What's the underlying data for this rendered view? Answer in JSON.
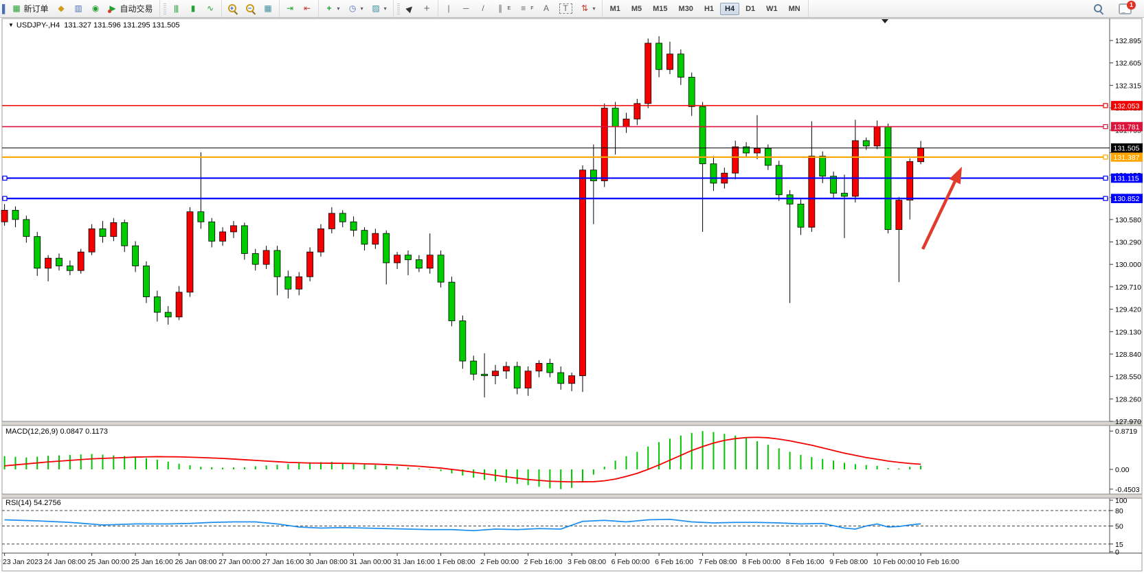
{
  "toolbar": {
    "new_order_label": "新订单",
    "auto_trading_label": "自动交易",
    "timeframes": [
      "M1",
      "M5",
      "M15",
      "M30",
      "H1",
      "H4",
      "D1",
      "W1",
      "MN"
    ],
    "active_timeframe": "H4",
    "notification_count": "1"
  },
  "icons": {
    "left_edge": "▌",
    "new_order": "▦",
    "history": "◆",
    "terminal": "▥",
    "community": "◉",
    "autotrade_play": "▶",
    "chart_bars": "|||",
    "chart_candles": "▮",
    "chart_line": "∿",
    "tile_windows": "▦",
    "shift_end": "⇥",
    "auto_scroll": "⇤",
    "add_indicator": "+",
    "periods": "◷",
    "template": "▨",
    "cursor": "▶",
    "crosshair": "+",
    "vline": "|",
    "hline": "─",
    "trendline": "/",
    "channel": "∥",
    "channel_sub": "E",
    "fibo": "≡",
    "fibo_sub": "F",
    "text_tool": "A",
    "label_tool": "T",
    "shapes": "⇅",
    "caret": "▾",
    "collapse_tri": "▼"
  },
  "chart": {
    "symbol": "USDJPY-,H4",
    "ohlc_line": "131.327 131.596 131.295 131.505"
  },
  "macd_panel": {
    "label": "MACD(12,26,9)",
    "values": "0.0847 0.1173",
    "axis_labels": [
      "0.8719",
      "0.00",
      "-0.4503"
    ]
  },
  "rsi_panel": {
    "label": "RSI(14)",
    "value": "54.2756",
    "axis_labels": [
      "100",
      "80",
      "50",
      "15",
      "0"
    ],
    "levels": [
      80,
      50,
      15
    ]
  },
  "chart_data": {
    "type": "candlestick",
    "title": "USDJPY- H4",
    "bull_color": "#f40000",
    "bear_color": "#00cc00",
    "wick_color": "#000000",
    "ylim": [
      127.97,
      133.17
    ],
    "price_ticks": [
      "132.895",
      "132.605",
      "132.315",
      "132.025",
      "131.735",
      "131.445",
      "131.155",
      "130.865",
      "130.580",
      "130.290",
      "130.000",
      "129.710",
      "129.420",
      "129.130",
      "128.840",
      "128.550",
      "128.260",
      "127.970"
    ],
    "hlines": [
      {
        "price": 132.053,
        "label": "132.053",
        "color": "#f40000",
        "width": 1.6,
        "left_handle": false
      },
      {
        "price": 131.781,
        "label": "131.781",
        "color": "#dc143c",
        "width": 1.6,
        "left_handle": false
      },
      {
        "price": 131.387,
        "label": "131.387",
        "color": "#ffa500",
        "width": 2.2,
        "left_handle": false
      },
      {
        "price": 131.115,
        "label": "131.115",
        "color": "#0000ff",
        "width": 2.2,
        "left_handle": true
      },
      {
        "price": 130.852,
        "label": "130.852",
        "color": "#0000ff",
        "width": 2.2,
        "left_handle": true
      }
    ],
    "bid_line": {
      "price": 131.505,
      "label": "131.505",
      "color": "#000000"
    },
    "x_labels": [
      "23 Jan 2023",
      "24 Jan 08:00",
      "25 Jan 00:00",
      "25 Jan 16:00",
      "26 Jan 08:00",
      "27 Jan 00:00",
      "27 Jan 16:00",
      "30 Jan 08:00",
      "31 Jan 00:00",
      "31 Jan 16:00",
      "1 Feb 08:00",
      "2 Feb 00:00",
      "2 Feb 16:00",
      "3 Feb 08:00",
      "6 Feb 00:00",
      "6 Feb 16:00",
      "7 Feb 08:00",
      "8 Feb 00:00",
      "8 Feb 16:00",
      "9 Feb 08:00",
      "10 Feb 00:00",
      "10 Feb 16:00"
    ],
    "candles_per_xtick": 4,
    "candles": [
      [
        130.55,
        130.78,
        130.5,
        130.7
      ],
      [
        130.7,
        130.75,
        130.48,
        130.58
      ],
      [
        130.58,
        130.63,
        130.28,
        130.36
      ],
      [
        130.36,
        130.42,
        129.85,
        129.95
      ],
      [
        129.95,
        130.12,
        129.78,
        130.08
      ],
      [
        130.08,
        130.14,
        129.92,
        129.98
      ],
      [
        129.98,
        130.05,
        129.86,
        129.92
      ],
      [
        129.92,
        130.2,
        129.88,
        130.16
      ],
      [
        130.16,
        130.52,
        130.12,
        130.46
      ],
      [
        130.46,
        130.56,
        130.28,
        130.36
      ],
      [
        130.36,
        130.6,
        130.3,
        130.54
      ],
      [
        130.54,
        130.58,
        130.16,
        130.24
      ],
      [
        130.24,
        130.3,
        129.9,
        129.98
      ],
      [
        129.98,
        130.04,
        129.5,
        129.58
      ],
      [
        129.58,
        129.66,
        129.26,
        129.38
      ],
      [
        129.38,
        129.46,
        129.22,
        129.32
      ],
      [
        129.32,
        129.72,
        129.28,
        129.64
      ],
      [
        129.64,
        130.74,
        129.58,
        130.68
      ],
      [
        130.68,
        131.45,
        130.46,
        130.55
      ],
      [
        130.55,
        130.6,
        130.22,
        130.3
      ],
      [
        130.3,
        130.48,
        130.24,
        130.42
      ],
      [
        130.42,
        130.56,
        130.34,
        130.5
      ],
      [
        130.5,
        130.54,
        130.06,
        130.14
      ],
      [
        130.14,
        130.2,
        129.92,
        130.0
      ],
      [
        130.0,
        130.24,
        129.94,
        130.18
      ],
      [
        130.18,
        130.24,
        129.6,
        129.84
      ],
      [
        129.84,
        129.92,
        129.56,
        129.68
      ],
      [
        129.68,
        129.9,
        129.6,
        129.84
      ],
      [
        129.84,
        130.22,
        129.78,
        130.16
      ],
      [
        130.16,
        130.52,
        130.1,
        130.46
      ],
      [
        130.46,
        130.74,
        130.4,
        130.66
      ],
      [
        130.66,
        130.7,
        130.48,
        130.55
      ],
      [
        130.55,
        130.62,
        130.36,
        130.44
      ],
      [
        130.44,
        130.48,
        130.18,
        130.26
      ],
      [
        130.26,
        130.46,
        130.2,
        130.4
      ],
      [
        130.4,
        130.44,
        129.74,
        130.02
      ],
      [
        130.02,
        130.16,
        129.94,
        130.12
      ],
      [
        130.12,
        130.18,
        129.86,
        130.06
      ],
      [
        130.06,
        130.12,
        129.9,
        129.95
      ],
      [
        129.95,
        130.4,
        129.88,
        130.12
      ],
      [
        130.12,
        130.18,
        129.7,
        129.77
      ],
      [
        129.77,
        129.84,
        129.2,
        129.27
      ],
      [
        129.27,
        129.34,
        128.65,
        128.75
      ],
      [
        128.75,
        128.82,
        128.5,
        128.58
      ],
      [
        128.58,
        128.85,
        128.28,
        128.56
      ],
      [
        128.56,
        128.7,
        128.45,
        128.62
      ],
      [
        128.62,
        128.74,
        128.52,
        128.68
      ],
      [
        128.68,
        128.74,
        128.32,
        128.4
      ],
      [
        128.4,
        128.68,
        128.3,
        128.62
      ],
      [
        128.62,
        128.76,
        128.54,
        128.72
      ],
      [
        128.72,
        128.78,
        128.54,
        128.6
      ],
      [
        128.6,
        128.68,
        128.38,
        128.46
      ],
      [
        128.46,
        128.6,
        128.36,
        128.56
      ],
      [
        128.56,
        131.28,
        128.35,
        131.22
      ],
      [
        131.22,
        131.55,
        130.52,
        131.08
      ],
      [
        131.08,
        132.08,
        131.0,
        132.02
      ],
      [
        132.02,
        132.1,
        131.42,
        131.78
      ],
      [
        131.78,
        131.96,
        131.7,
        131.88
      ],
      [
        131.88,
        132.14,
        131.8,
        132.08
      ],
      [
        132.08,
        132.92,
        132.02,
        132.86
      ],
      [
        132.86,
        132.95,
        132.42,
        132.52
      ],
      [
        132.52,
        132.88,
        132.46,
        132.72
      ],
      [
        132.72,
        132.78,
        132.32,
        132.42
      ],
      [
        132.42,
        132.48,
        131.92,
        132.04
      ],
      [
        132.04,
        132.1,
        130.42,
        131.3
      ],
      [
        131.3,
        131.4,
        130.95,
        131.05
      ],
      [
        131.05,
        131.25,
        130.98,
        131.18
      ],
      [
        131.18,
        131.6,
        131.1,
        131.52
      ],
      [
        131.52,
        131.58,
        131.38,
        131.44
      ],
      [
        131.44,
        131.93,
        131.36,
        131.5
      ],
      [
        131.5,
        131.55,
        131.22,
        131.28
      ],
      [
        131.28,
        131.34,
        130.82,
        130.9
      ],
      [
        130.9,
        130.96,
        129.5,
        130.78
      ],
      [
        130.78,
        130.84,
        130.38,
        130.48
      ],
      [
        130.48,
        131.85,
        130.42,
        131.4
      ],
      [
        131.4,
        131.46,
        131.05,
        131.14
      ],
      [
        131.14,
        131.2,
        130.85,
        130.92
      ],
      [
        130.92,
        131.16,
        130.34,
        130.88
      ],
      [
        130.88,
        131.87,
        130.8,
        131.6
      ],
      [
        131.6,
        131.64,
        131.48,
        131.53
      ],
      [
        131.53,
        131.86,
        131.49,
        131.78
      ],
      [
        131.78,
        131.82,
        130.4,
        130.45
      ],
      [
        130.45,
        130.87,
        129.77,
        130.83
      ],
      [
        130.83,
        131.37,
        130.58,
        131.33
      ],
      [
        131.327,
        131.596,
        131.295,
        131.505
      ]
    ],
    "macd": {
      "params": "12,26,9",
      "hist_color": "#00c400",
      "signal_color": "#f40000",
      "current_main": 0.0847,
      "current_signal": 0.1173,
      "axis": [
        0.8719,
        0.0,
        -0.4503
      ],
      "hist_keypoints": [
        [
          0,
          0.3
        ],
        [
          2,
          0.27
        ],
        [
          4,
          0.31
        ],
        [
          6,
          0.33
        ],
        [
          8,
          0.35
        ],
        [
          10,
          0.32
        ],
        [
          12,
          0.29
        ],
        [
          14,
          0.22
        ],
        [
          16,
          0.13
        ],
        [
          18,
          0.06
        ],
        [
          20,
          0.04
        ],
        [
          22,
          0.05
        ],
        [
          24,
          0.09
        ],
        [
          26,
          0.12
        ],
        [
          28,
          0.16
        ],
        [
          30,
          0.17
        ],
        [
          32,
          0.13
        ],
        [
          34,
          0.1
        ],
        [
          36,
          0.06
        ],
        [
          38,
          0.02
        ],
        [
          40,
          -0.04
        ],
        [
          42,
          -0.14
        ],
        [
          44,
          -0.24
        ],
        [
          46,
          -0.3
        ],
        [
          48,
          -0.36
        ],
        [
          50,
          -0.43
        ],
        [
          51,
          -0.4503
        ],
        [
          52,
          -0.42
        ],
        [
          53,
          -0.3
        ],
        [
          54,
          -0.12
        ],
        [
          55,
          0.06
        ],
        [
          56,
          0.2
        ],
        [
          57,
          0.3
        ],
        [
          58,
          0.4
        ],
        [
          59,
          0.52
        ],
        [
          60,
          0.62
        ],
        [
          61,
          0.7
        ],
        [
          62,
          0.77
        ],
        [
          63,
          0.83
        ],
        [
          64,
          0.8719
        ],
        [
          65,
          0.85
        ],
        [
          66,
          0.81
        ],
        [
          67,
          0.77
        ],
        [
          68,
          0.71
        ],
        [
          69,
          0.64
        ],
        [
          70,
          0.56
        ],
        [
          71,
          0.48
        ],
        [
          72,
          0.4
        ],
        [
          73,
          0.33
        ],
        [
          74,
          0.28
        ],
        [
          75,
          0.24
        ],
        [
          76,
          0.2
        ],
        [
          77,
          0.15
        ],
        [
          78,
          0.12
        ],
        [
          79,
          0.1
        ],
        [
          80,
          0.08
        ],
        [
          81,
          0.03
        ],
        [
          82,
          0.02
        ],
        [
          83,
          0.06
        ],
        [
          84,
          0.0847
        ]
      ],
      "signal_keypoints": [
        [
          0,
          0.08
        ],
        [
          4,
          0.17
        ],
        [
          8,
          0.24
        ],
        [
          12,
          0.28
        ],
        [
          14,
          0.29
        ],
        [
          16,
          0.285
        ],
        [
          18,
          0.27
        ],
        [
          20,
          0.25
        ],
        [
          22,
          0.22
        ],
        [
          24,
          0.19
        ],
        [
          26,
          0.16
        ],
        [
          28,
          0.145
        ],
        [
          30,
          0.14
        ],
        [
          32,
          0.135
        ],
        [
          34,
          0.12
        ],
        [
          36,
          0.1
        ],
        [
          38,
          0.07
        ],
        [
          40,
          0.03
        ],
        [
          42,
          -0.03
        ],
        [
          44,
          -0.1
        ],
        [
          46,
          -0.17
        ],
        [
          48,
          -0.23
        ],
        [
          50,
          -0.27
        ],
        [
          52,
          -0.285
        ],
        [
          54,
          -0.28
        ],
        [
          55,
          -0.26
        ],
        [
          56,
          -0.22
        ],
        [
          57,
          -0.16
        ],
        [
          58,
          -0.09
        ],
        [
          59,
          0.0
        ],
        [
          60,
          0.1
        ],
        [
          61,
          0.21
        ],
        [
          62,
          0.32
        ],
        [
          63,
          0.43
        ],
        [
          64,
          0.52
        ],
        [
          65,
          0.6
        ],
        [
          66,
          0.66
        ],
        [
          67,
          0.7
        ],
        [
          68,
          0.725
        ],
        [
          69,
          0.73
        ],
        [
          70,
          0.72
        ],
        [
          71,
          0.69
        ],
        [
          72,
          0.65
        ],
        [
          73,
          0.6
        ],
        [
          74,
          0.55
        ],
        [
          75,
          0.49
        ],
        [
          76,
          0.43
        ],
        [
          77,
          0.37
        ],
        [
          78,
          0.32
        ],
        [
          79,
          0.27
        ],
        [
          80,
          0.23
        ],
        [
          81,
          0.19
        ],
        [
          82,
          0.16
        ],
        [
          83,
          0.135
        ],
        [
          84,
          0.1173
        ]
      ]
    },
    "rsi": {
      "period": "14",
      "line_color": "#1f8fef",
      "current": 54.2756,
      "levels": [
        80,
        50,
        15
      ],
      "keypoints": [
        [
          0,
          62
        ],
        [
          3,
          60
        ],
        [
          6,
          57
        ],
        [
          9,
          52
        ],
        [
          12,
          54
        ],
        [
          15,
          54
        ],
        [
          17,
          55
        ],
        [
          19,
          57
        ],
        [
          21,
          58
        ],
        [
          23,
          58
        ],
        [
          25,
          54
        ],
        [
          27,
          48
        ],
        [
          29,
          46
        ],
        [
          31,
          47
        ],
        [
          33,
          46
        ],
        [
          35,
          45
        ],
        [
          37,
          44
        ],
        [
          39,
          43
        ],
        [
          41,
          43
        ],
        [
          43,
          41
        ],
        [
          45,
          44
        ],
        [
          47,
          43
        ],
        [
          49,
          45
        ],
        [
          51,
          44
        ],
        [
          53,
          59
        ],
        [
          55,
          61
        ],
        [
          57,
          58
        ],
        [
          59,
          62
        ],
        [
          61,
          63
        ],
        [
          63,
          58
        ],
        [
          65,
          56
        ],
        [
          67,
          57
        ],
        [
          69,
          57
        ],
        [
          71,
          56
        ],
        [
          73,
          54
        ],
        [
          75,
          55
        ],
        [
          77,
          46
        ],
        [
          78,
          44
        ],
        [
          79,
          50
        ],
        [
          80,
          54
        ],
        [
          81,
          48
        ],
        [
          82,
          49
        ],
        [
          83,
          52
        ],
        [
          84,
          54.2756
        ]
      ]
    },
    "arrow_annotation": {
      "color": "#e23b2e",
      "from": [
        1343,
        363
      ],
      "to": [
        1400,
        243
      ]
    }
  }
}
